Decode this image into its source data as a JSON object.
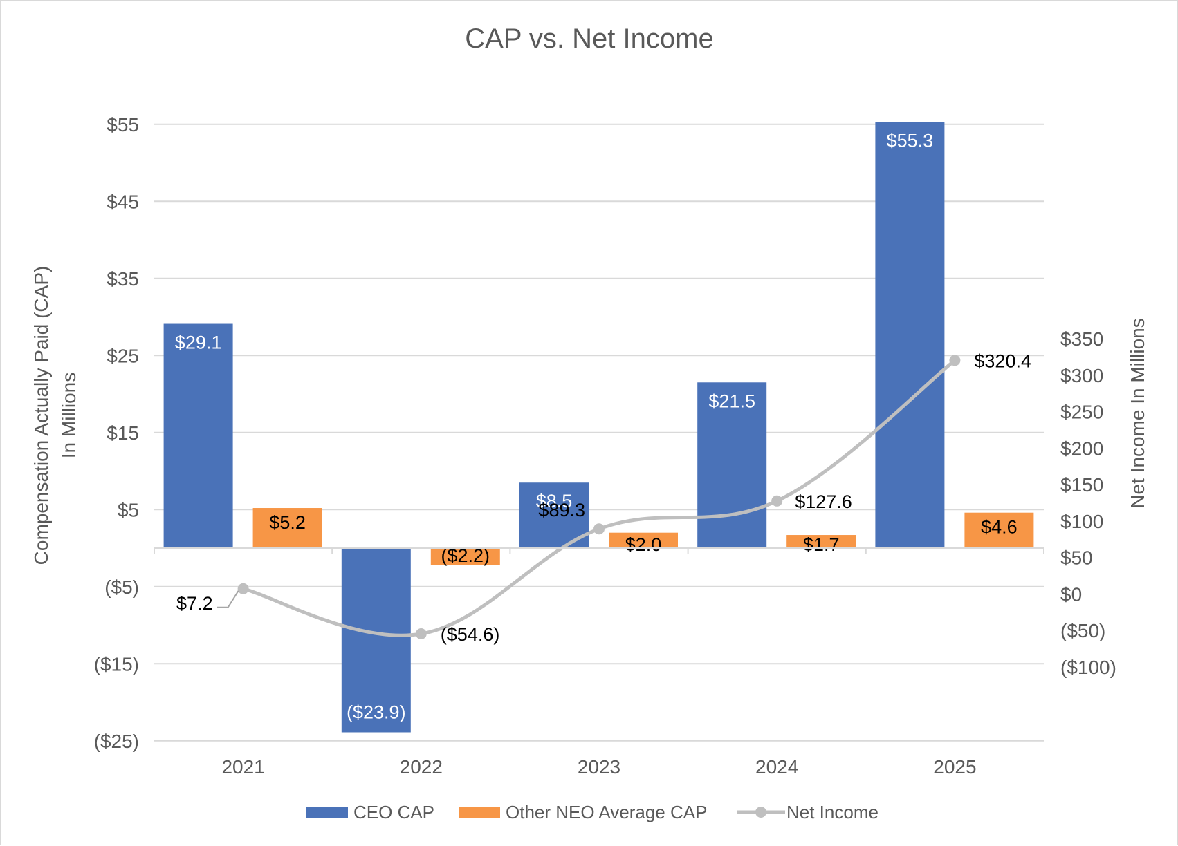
{
  "chart_data": {
    "type": "bar",
    "title": "CAP vs. Net Income",
    "categories": [
      "2021",
      "2022",
      "2023",
      "2024",
      "2025"
    ],
    "series": [
      {
        "name": "CEO CAP",
        "type": "bar",
        "axis": "left",
        "color": "#4A72B8",
        "values": [
          29.1,
          -23.9,
          8.5,
          21.5,
          55.3
        ],
        "labels": [
          "$29.1",
          "($23.9)",
          "$8.5",
          "$21.5",
          "$55.3"
        ]
      },
      {
        "name": "Other NEO Average CAP",
        "type": "bar",
        "axis": "left",
        "color": "#F79646",
        "values": [
          5.2,
          -2.2,
          2.0,
          1.7,
          4.6
        ],
        "labels": [
          "$5.2",
          "($2.2)",
          "$2.0",
          "$1.7",
          "$4.6"
        ]
      },
      {
        "name": "Net Income",
        "type": "line",
        "axis": "right",
        "color": "#BFBFBF",
        "values": [
          7.2,
          -54.6,
          89.3,
          127.6,
          320.4
        ],
        "labels": [
          "$7.2",
          "($54.6)",
          "$89.3",
          "$127.6",
          "$320.4"
        ]
      }
    ],
    "y_left": {
      "label_line1": "Compensation Actually Paid (CAP)",
      "label_line2": "In Millions",
      "ticks": [
        55,
        45,
        35,
        25,
        15,
        5,
        -5,
        -15,
        -25
      ],
      "tick_labels": [
        "$55",
        "$45",
        "$35",
        "$25",
        "$15",
        "$5",
        "($5)",
        "($15)",
        "($25)"
      ]
    },
    "y_right": {
      "label": "Net Income In Millions",
      "ticks": [
        350,
        300,
        250,
        200,
        150,
        100,
        50,
        0,
        -50,
        -100
      ],
      "tick_labels": [
        "$350",
        "$300",
        "$250",
        "$200",
        "$150",
        "$100",
        "$50",
        "$0",
        "($50)",
        "($100)"
      ]
    },
    "grid": true,
    "legend_position": "bottom"
  }
}
